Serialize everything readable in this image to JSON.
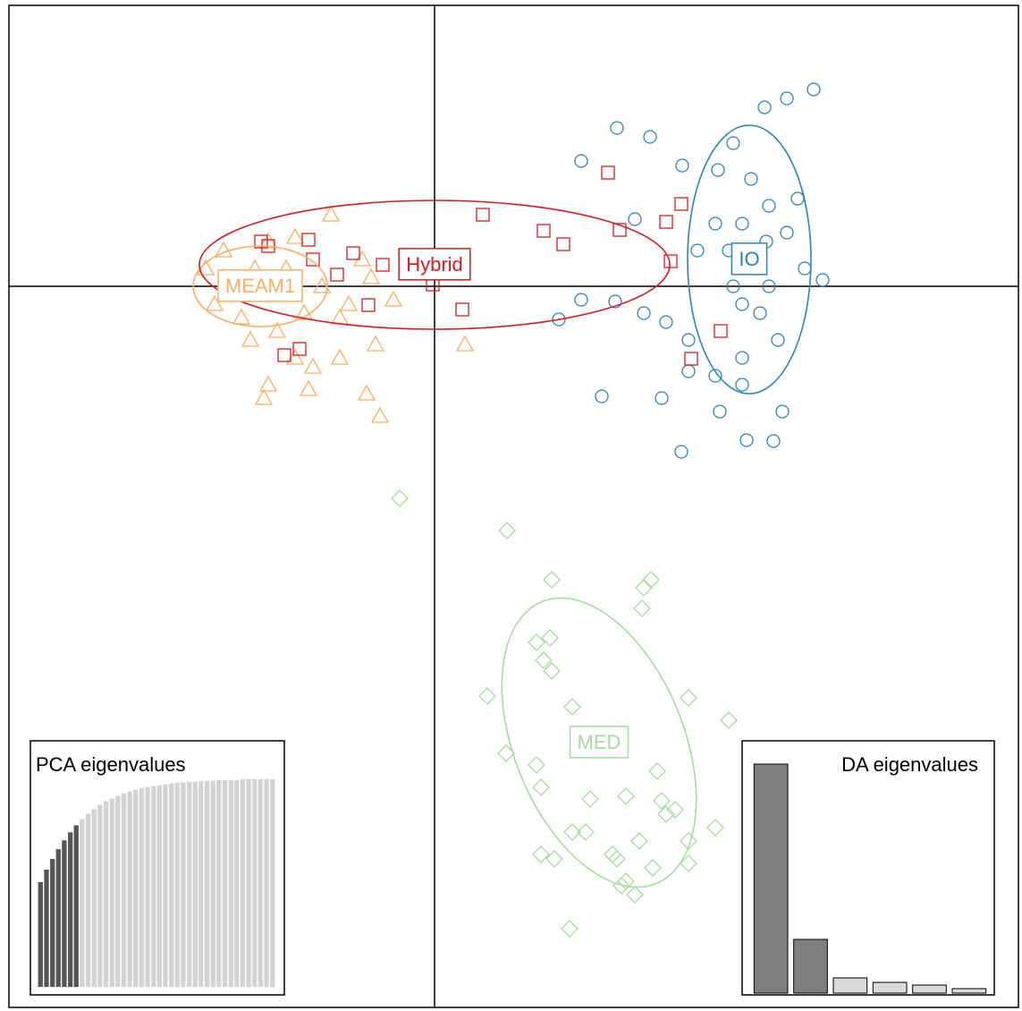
{
  "chart_data": [
    {
      "type": "scatter",
      "xlim": [
        -4.76,
        6.53
      ],
      "ylim": [
        -8.06,
        3.14
      ],
      "origin_lines": true,
      "series": [
        {
          "name": "IO",
          "color": "#2b83ba",
          "shape": "circle",
          "ellipse": {
            "cx": 3.52,
            "cy": 0.3,
            "rx": 0.69,
            "ry": 1.5,
            "angle": 0
          },
          "x": [
            4.24,
            2.04,
            2.41,
            2.77,
            3.17,
            3.69,
            3.94,
            3.34,
            3.54,
            3.74,
            3.94,
            4.14,
            4.34,
            3.14,
            2.94,
            3.34,
            3.64,
            3.84,
            3.44,
            3.14,
            2.84,
            2.59,
            2.34,
            2.02,
            1.64,
            1.39,
            1.87,
            2.54,
            2.76,
            3.49,
            3.79,
            3.89,
            3.19,
            3.44,
            3.71,
            3.59,
            3.74,
            3.44,
            3.29,
            3.44,
            2.24,
            1.64,
            4.06,
            2.84
          ],
          "y": [
            2.2,
            1.77,
            1.67,
            1.35,
            1.3,
            2.0,
            2.1,
            1.6,
            1.2,
            0.9,
            0.6,
            0.2,
            0.07,
            0.7,
            0.4,
            0,
            -0.3,
            -0.6,
            -0.8,
            -1.0,
            -0.6,
            -0.4,
            -0.3,
            -0.17,
            -0.15,
            -0.37,
            -1.23,
            -1.25,
            -1.85,
            -1.72,
            -1.73,
            -1.4,
            -1.4,
            -1.1,
            0.5,
            0.2,
            0,
            0.7,
            0.4,
            -0.2,
            0.75,
            1.4,
            0.98,
            -0.95
          ]
        },
        {
          "name": "MEAM1",
          "color": "#fdae61",
          "shape": "triangle",
          "ellipse": {
            "cx": -1.95,
            "cy": 0.0,
            "rx": 0.75,
            "ry": 0.45,
            "angle": 0
          },
          "x": [
            -1.16,
            -1.86,
            -1.56,
            -2.36,
            -2.56,
            -2.26,
            -1.86,
            -1.46,
            -2.06,
            -1.76,
            -1.06,
            -0.66,
            -1.36,
            -1.86,
            -1.41,
            -0.76,
            -0.61,
            -1.91,
            0.34,
            -0.46,
            -0.71,
            -0.81,
            -0.96,
            -2.46,
            -2.16,
            -1.66,
            -1.26,
            -2.01,
            -1.06,
            -1.56
          ],
          "y": [
            0.8,
            0.5,
            0.55,
            0.4,
            0.2,
            0,
            -0.1,
            -0.3,
            -0.6,
            -0.5,
            -0.8,
            -0.65,
            -0.9,
            -1.1,
            -1.15,
            -1.2,
            -1.45,
            -1.25,
            -0.65,
            -0.15,
            0.1,
            0.3,
            -0.2,
            -0.2,
            -0.35,
            0.2,
            0,
            0.2,
            -0.35,
            -0.8
          ]
        },
        {
          "name": "Hybrid",
          "color": "#d7191c",
          "shape": "square",
          "ellipse": {
            "cx": 0.0,
            "cy": 0.24,
            "rx": 2.63,
            "ry": 0.72,
            "angle": 0
          },
          "x": [
            1.94,
            0.54,
            1.22,
            1.44,
            2.07,
            2.59,
            2.76,
            2.64,
            0.31,
            -0.02,
            -0.58,
            -0.74,
            -1.09,
            -1.36,
            -1.41,
            -1.86,
            -1.94,
            -1.51,
            -1.68,
            3.2,
            2.87,
            -0.91
          ],
          "y": [
            1.27,
            0.8,
            0.62,
            0.47,
            0.63,
            0.72,
            0.92,
            0.28,
            -0.26,
            0.02,
            0.24,
            -0.21,
            0.13,
            0.3,
            0.52,
            0.45,
            0.5,
            -0.7,
            -0.77,
            -0.5,
            -0.81,
            0.37
          ]
        },
        {
          "name": "MED",
          "color": "#a6dba0",
          "shape": "diamond",
          "ellipse": {
            "cx": 1.84,
            "cy": -5.1,
            "rx": 0.95,
            "ry": 1.7,
            "angle": -22
          },
          "x": [
            -0.39,
            0.81,
            1.31,
            2.42,
            2.34,
            2.32,
            1.14,
            1.29,
            1.22,
            1.31,
            0.59,
            1.54,
            2.84,
            3.29,
            0.8,
            1.94,
            1.14,
            2.49,
            1.19,
            1.74,
            2.14,
            2.54,
            2.69,
            2.59,
            3.14,
            1.54,
            1.69,
            2.29,
            2.84,
            1.19,
            1.34,
            1.99,
            2.04,
            2.44,
            2.14,
            2.09,
            2.24,
            1.51,
            2.84
          ],
          "y": [
            -2.37,
            -2.73,
            -3.28,
            -3.28,
            -3.37,
            -3.6,
            -3.98,
            -3.93,
            -4.18,
            -4.3,
            -4.58,
            -4.7,
            -4.6,
            -4.85,
            -5.22,
            -5.15,
            -5.35,
            -5.42,
            -5.6,
            -5.73,
            -5.7,
            -5.75,
            -5.85,
            -5.9,
            -6.05,
            -6.1,
            -6.1,
            -6.2,
            -6.2,
            -6.35,
            -6.4,
            -6.35,
            -6.4,
            -6.5,
            -6.65,
            -6.7,
            -6.8,
            -7.18,
            -6.45
          ]
        }
      ]
    },
    {
      "type": "bar",
      "title": "PCA eigenvalues",
      "retained": 7,
      "color": "#555555",
      "color_other": "#d3d3d3",
      "values": [
        118,
        132,
        144,
        155,
        165,
        174,
        182,
        189,
        195,
        200,
        205,
        209,
        212,
        215,
        218,
        220,
        222,
        224,
        225,
        226,
        227,
        228,
        229,
        230,
        230,
        231,
        231,
        232,
        232,
        232,
        233,
        233,
        233,
        233,
        234,
        234,
        234,
        234,
        234,
        234
      ]
    },
    {
      "type": "bar",
      "title": "DA eigenvalues",
      "retained": 2,
      "color": "#7f7f7f",
      "color_other": "#d9d9d9",
      "values": [
        256,
        60,
        17,
        12,
        9,
        5
      ]
    }
  ]
}
